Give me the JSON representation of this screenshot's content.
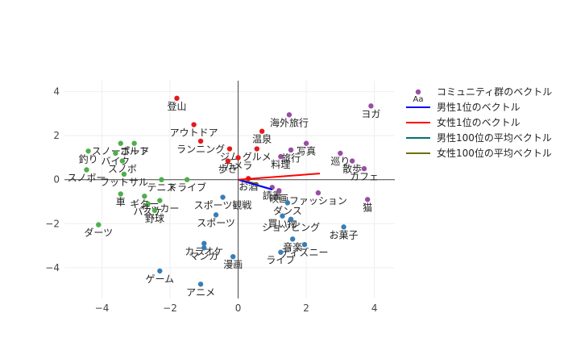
{
  "chart_data": {
    "type": "scatter",
    "xlim": [
      -5.1,
      4.6
    ],
    "ylim": [
      -5.4,
      4.5
    ],
    "x_ticks": [
      -4,
      -2,
      0,
      2,
      4
    ],
    "y_ticks": [
      -4,
      -2,
      0,
      2,
      4
    ],
    "tick_labels_x": [
      "−4",
      "−2",
      "0",
      "2",
      "4"
    ],
    "tick_labels_y": [
      "−4",
      "−2",
      "0",
      "2",
      "4"
    ],
    "grid": true,
    "legend_position": "top-right",
    "colors": {
      "red": "#e41a1c",
      "blue": "#377eb8",
      "green": "#4daf4a",
      "purple": "#984ea3",
      "line_male": "#0000ff",
      "line_female": "#ff0000",
      "line_male_avg": "#007070",
      "line_female_avg": "#707000"
    },
    "legend": {
      "points_label": "コミュニティ群のベクトル",
      "points_marker_text": "Aa",
      "lines": [
        {
          "name": "男性1位のベクトル",
          "color": "#0000ff"
        },
        {
          "name": "女性1位のベクトル",
          "color": "#ff0000"
        },
        {
          "name": "男性100位の平均ベクトル",
          "color": "#007070"
        },
        {
          "name": "女性100位の平均ベクトル",
          "color": "#707000"
        }
      ]
    },
    "vectors": [
      {
        "name": "男性1位のベクトル",
        "color": "#0000ff",
        "x": [
          0,
          1.0
        ],
        "y": [
          0,
          -0.45
        ]
      },
      {
        "name": "女性1位のベクトル",
        "color": "#ff0000",
        "x": [
          0,
          2.4
        ],
        "y": [
          0,
          0.28
        ]
      },
      {
        "name": "男性100位の平均ベクトル",
        "color": "#007070",
        "x": [
          0,
          0.9
        ],
        "y": [
          0,
          -0.4
        ]
      },
      {
        "name": "女性100位の平均ベクトル",
        "color": "#707000",
        "x": [
          0,
          0.6
        ],
        "y": [
          0,
          -0.2
        ]
      }
    ],
    "points": [
      {
        "label": "登山",
        "x": -1.8,
        "y": 3.7,
        "color": "#e41a1c"
      },
      {
        "label": "アウトドア",
        "x": -1.3,
        "y": 2.5,
        "color": "#e41a1c"
      },
      {
        "label": "ランニング",
        "x": -1.1,
        "y": 1.75,
        "color": "#e41a1c"
      },
      {
        "label": "温泉",
        "x": 0.7,
        "y": 2.2,
        "color": "#e41a1c"
      },
      {
        "label": "グルメ",
        "x": 0.55,
        "y": 1.4,
        "color": "#e41a1c"
      },
      {
        "label": "ジム",
        "x": -0.25,
        "y": 1.4,
        "color": "#e41a1c"
      },
      {
        "label": "カメラ",
        "x": 0.0,
        "y": 1.0,
        "color": "#e41a1c"
      },
      {
        "label": "歩き",
        "x": -0.3,
        "y": 0.85,
        "color": "#e41a1c"
      },
      {
        "label": "お酒",
        "x": 0.3,
        "y": 0.05,
        "color": "#e41a1c"
      },
      {
        "label": "海外旅行",
        "x": 1.5,
        "y": 2.95,
        "color": "#984ea3"
      },
      {
        "label": "ヨガ",
        "x": 3.9,
        "y": 3.35,
        "color": "#984ea3"
      },
      {
        "label": "写真",
        "x": 2.0,
        "y": 1.65,
        "color": "#984ea3"
      },
      {
        "label": "旅行",
        "x": 1.55,
        "y": 1.35,
        "color": "#984ea3"
      },
      {
        "label": "料理",
        "x": 1.25,
        "y": 1.05,
        "color": "#984ea3"
      },
      {
        "label": "巡り",
        "x": 3.0,
        "y": 1.2,
        "color": "#984ea3"
      },
      {
        "label": "散歩",
        "x": 3.35,
        "y": 0.85,
        "color": "#984ea3"
      },
      {
        "label": "カフェ",
        "x": 3.7,
        "y": 0.5,
        "color": "#984ea3"
      },
      {
        "label": "読書",
        "x": 1.0,
        "y": -0.35,
        "color": "#984ea3"
      },
      {
        "label": "映画",
        "x": 1.2,
        "y": -0.5,
        "color": "#984ea3"
      },
      {
        "label": "ファッション",
        "x": 2.35,
        "y": -0.6,
        "color": "#984ea3"
      },
      {
        "label": "猫",
        "x": 3.8,
        "y": -0.9,
        "color": "#984ea3"
      },
      {
        "label": "スノーボード",
        "x": -3.45,
        "y": 1.65,
        "color": "#4daf4a"
      },
      {
        "label": "ゴルフ",
        "x": -3.05,
        "y": 1.65,
        "color": "#4daf4a"
      },
      {
        "label": "釣り",
        "x": -4.4,
        "y": 1.3,
        "color": "#4daf4a"
      },
      {
        "label": "バイク",
        "x": -3.6,
        "y": 1.2,
        "color": "#4daf4a"
      },
      {
        "label": "スノボ",
        "x": -3.4,
        "y": 0.85,
        "color": "#4daf4a"
      },
      {
        "label": "スノボー",
        "x": -4.45,
        "y": 0.45,
        "color": "#4daf4a"
      },
      {
        "label": "フットサル",
        "x": -3.35,
        "y": 0.25,
        "color": "#4daf4a"
      },
      {
        "label": "テニス",
        "x": -2.25,
        "y": 0.0,
        "color": "#4daf4a"
      },
      {
        "label": "ドライブ",
        "x": -1.5,
        "y": 0.0,
        "color": "#4daf4a"
      },
      {
        "label": "車",
        "x": -3.45,
        "y": -0.65,
        "color": "#4daf4a"
      },
      {
        "label": "ギター",
        "x": -2.75,
        "y": -0.75,
        "color": "#4daf4a"
      },
      {
        "label": "バスケ",
        "x": -2.65,
        "y": -1.1,
        "color": "#4daf4a"
      },
      {
        "label": "サッカー",
        "x": -2.3,
        "y": -0.95,
        "color": "#4daf4a"
      },
      {
        "label": "野球",
        "x": -2.45,
        "y": -1.4,
        "color": "#4daf4a"
      },
      {
        "label": "ダーツ",
        "x": -4.1,
        "y": -2.05,
        "color": "#4daf4a"
      },
      {
        "label": "スポーツ観戦",
        "x": -0.45,
        "y": -0.8,
        "color": "#377eb8"
      },
      {
        "label": "スポーツ",
        "x": -0.65,
        "y": -1.6,
        "color": "#377eb8"
      },
      {
        "label": "ダンス",
        "x": 1.45,
        "y": -1.05,
        "color": "#377eb8"
      },
      {
        "label": "買い物",
        "x": 1.3,
        "y": -1.65,
        "color": "#377eb8"
      },
      {
        "label": "ショッピング",
        "x": 1.55,
        "y": -1.8,
        "color": "#377eb8"
      },
      {
        "label": "お菓子",
        "x": 3.1,
        "y": -2.15,
        "color": "#377eb8"
      },
      {
        "label": "音楽",
        "x": 1.6,
        "y": -2.7,
        "color": "#377eb8"
      },
      {
        "label": "ディズニー",
        "x": 1.95,
        "y": -2.95,
        "color": "#377eb8"
      },
      {
        "label": "ライブ",
        "x": 1.25,
        "y": -3.3,
        "color": "#377eb8"
      },
      {
        "label": "カラオケ",
        "x": -1.0,
        "y": -2.9,
        "color": "#377eb8"
      },
      {
        "label": "マンガ",
        "x": -1.0,
        "y": -3.1,
        "color": "#377eb8"
      },
      {
        "label": "漫画",
        "x": -0.15,
        "y": -3.5,
        "color": "#377eb8"
      },
      {
        "label": "ゲーム",
        "x": -2.3,
        "y": -4.15,
        "color": "#377eb8"
      },
      {
        "label": "アニメ",
        "x": -1.1,
        "y": -4.75,
        "color": "#377eb8"
      }
    ]
  }
}
